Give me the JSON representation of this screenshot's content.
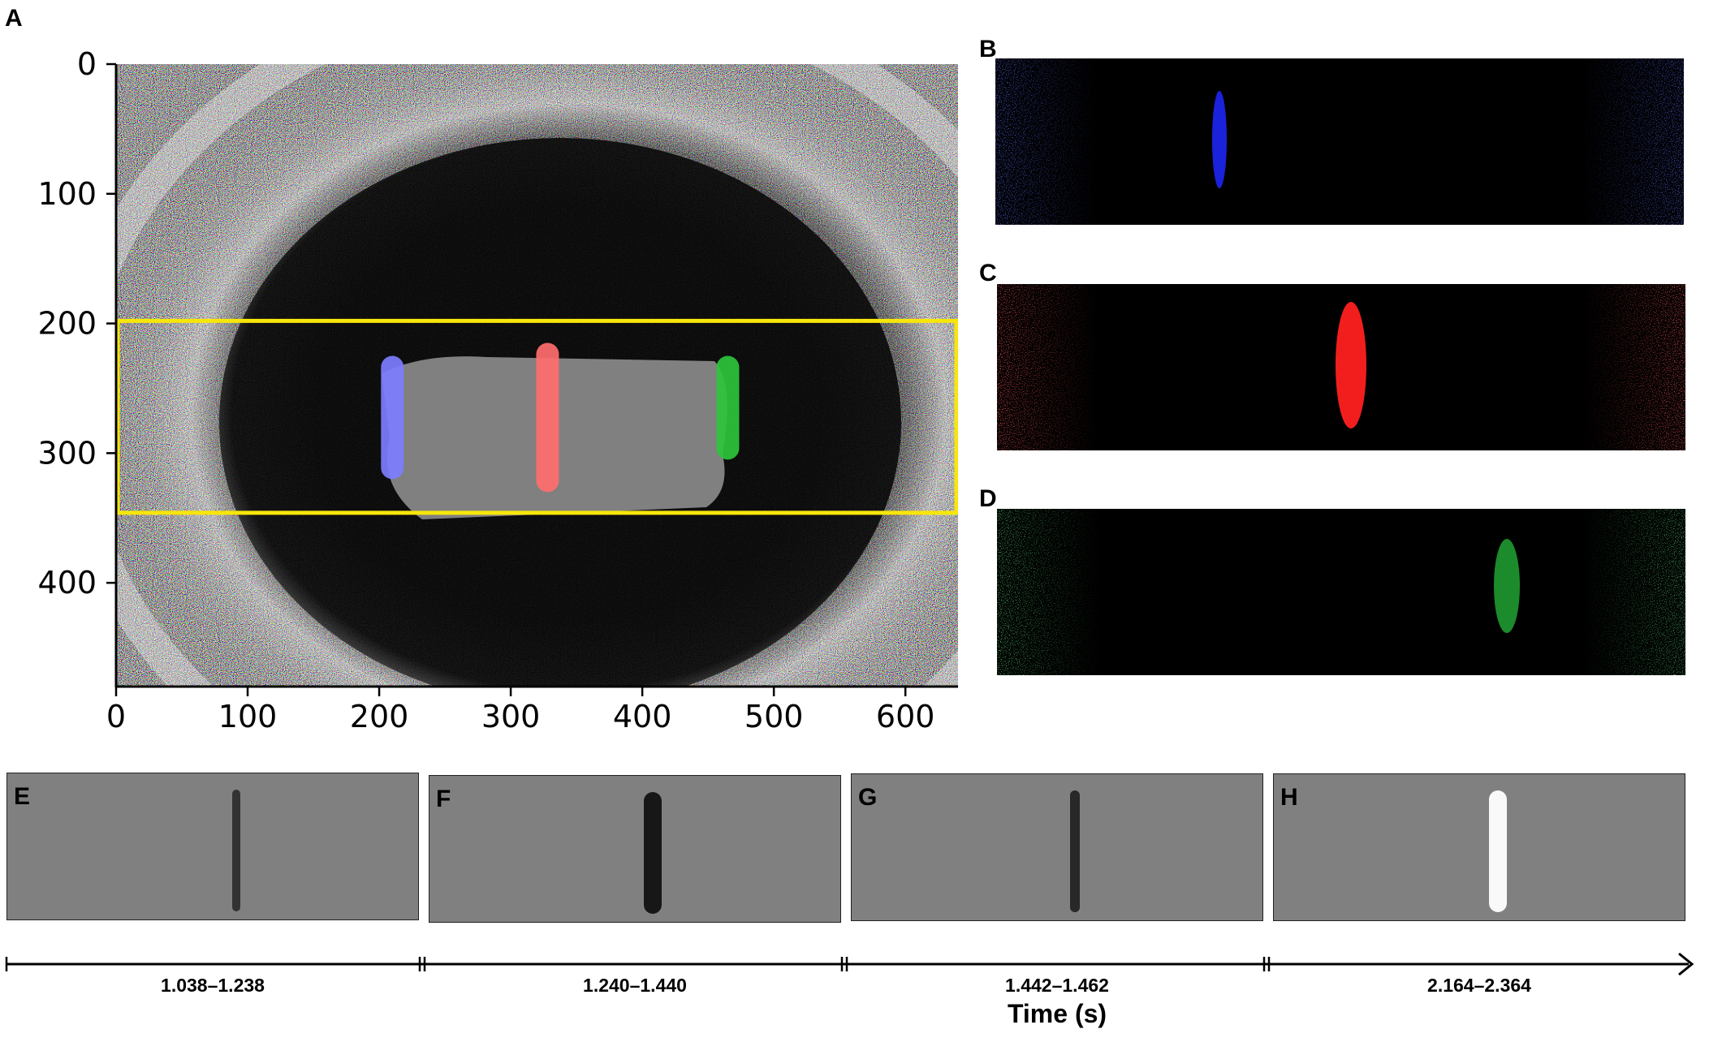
{
  "panel_labels": {
    "a": "A",
    "b": "B",
    "c": "C",
    "d": "D",
    "e": "E",
    "f": "F",
    "g": "G",
    "h": "H"
  },
  "panel_a": {
    "x_ticks": [
      "0",
      "100",
      "200",
      "300",
      "400",
      "500",
      "600"
    ],
    "y_ticks": [
      "0",
      "100",
      "200",
      "300",
      "400"
    ],
    "xlim": [
      0,
      640
    ],
    "ylim": [
      480,
      0
    ],
    "roi": {
      "x": [
        0,
        640
      ],
      "y": [
        198,
        346
      ],
      "color": "#f7e60a"
    },
    "highlights": [
      {
        "color": "blue",
        "x": 210,
        "y": [
          225,
          320
        ]
      },
      {
        "color": "red",
        "x": 328,
        "y": [
          215,
          330
        ]
      },
      {
        "color": "green",
        "x": 465,
        "y": [
          225,
          305
        ]
      }
    ]
  },
  "channel_colors": {
    "blue": "#1b24e8",
    "red": "#f21e1e",
    "green": "#1f9a30",
    "gray": "#808080",
    "roi": "#f7e60a"
  },
  "time_windows": [
    "1.038–1.238",
    "1.240–1.440",
    "1.442–1.462",
    "2.164–2.364"
  ],
  "time_axis_label": "Time (s)"
}
